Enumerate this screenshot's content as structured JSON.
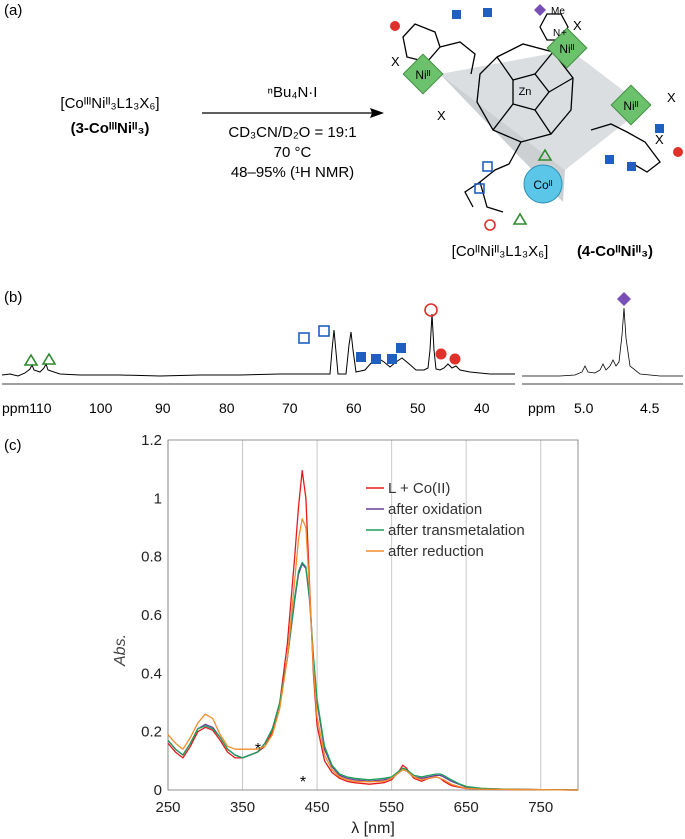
{
  "panels": {
    "a": "(a)",
    "b": "(b)",
    "c": "(c)"
  },
  "scheme": {
    "reactant_formula": "[CoᴵᴵᴵNiᴵᴵ₃L1₃X₆]",
    "reactant_label": "(3-CoᴵᴵᴵNiᴵᴵ₃)",
    "reagent": "ⁿBu₄N·I",
    "solvent": "CD₃CN/D₂O = 19:1",
    "temperature": "70 °C",
    "yield": "48–95% (¹H NMR)",
    "product_formula": "[CoᴵᴵNiᴵᴵ₃L1₃X₆]",
    "product_label": "(4-CoᴵᴵNiᴵᴵ₃)",
    "structure": {
      "ni_label": "Niᴵᴵ",
      "co_label": "Coᴵᴵ",
      "zn_label": "Zn",
      "x_label": "X",
      "me_label": "Me",
      "n_label": "N",
      "plus": "+"
    }
  },
  "nmr": {
    "main_ticks": [
      "ppm110",
      "100",
      "90",
      "80",
      "70",
      "60",
      "50",
      "40"
    ],
    "inset_ticks": [
      "ppm",
      "5.0",
      "4.5"
    ]
  },
  "chart_data": {
    "type": "line",
    "title": "",
    "xlabel": "λ [nm]",
    "ylabel": "Abs.",
    "xlim": [
      250,
      800
    ],
    "ylim": [
      0,
      1.2
    ],
    "x_ticks": [
      250,
      350,
      450,
      550,
      650,
      750
    ],
    "y_ticks": [
      0,
      0.2,
      0.4,
      0.6,
      0.8,
      1,
      1.2
    ],
    "y_tick_labels": [
      "0",
      "0.2",
      "0.4",
      "0.6",
      "0.8",
      "1",
      "1.2"
    ],
    "grid": "vertical",
    "legend_position": "top-right",
    "annotations": [
      "*",
      "*"
    ],
    "x": [
      250,
      260,
      270,
      280,
      290,
      300,
      310,
      320,
      330,
      340,
      350,
      360,
      370,
      380,
      390,
      400,
      410,
      420,
      425,
      430,
      435,
      440,
      445,
      450,
      460,
      470,
      480,
      490,
      500,
      520,
      540,
      550,
      560,
      565,
      570,
      575,
      580,
      590,
      600,
      610,
      615,
      620,
      630,
      640,
      650,
      670,
      700,
      750,
      800
    ],
    "series": [
      {
        "name": "L + Co(II)",
        "color": "#e41a1c",
        "values": [
          0.16,
          0.13,
          0.11,
          0.15,
          0.2,
          0.215,
          0.205,
          0.17,
          0.13,
          0.11,
          0.11,
          0.12,
          0.13,
          0.15,
          0.2,
          0.3,
          0.5,
          0.8,
          0.97,
          1.095,
          1.0,
          0.7,
          0.4,
          0.22,
          0.1,
          0.06,
          0.04,
          0.03,
          0.025,
          0.02,
          0.025,
          0.035,
          0.065,
          0.085,
          0.075,
          0.055,
          0.04,
          0.03,
          0.04,
          0.045,
          0.04,
          0.03,
          0.015,
          0.01,
          0.005,
          0.003,
          0.002,
          0.001,
          0.0
        ]
      },
      {
        "name": "after oxidation",
        "color": "#6a3d9a",
        "values": [
          0.17,
          0.14,
          0.12,
          0.16,
          0.21,
          0.225,
          0.215,
          0.18,
          0.14,
          0.12,
          0.11,
          0.12,
          0.13,
          0.16,
          0.21,
          0.3,
          0.45,
          0.65,
          0.74,
          0.775,
          0.76,
          0.65,
          0.45,
          0.3,
          0.14,
          0.08,
          0.05,
          0.04,
          0.035,
          0.03,
          0.035,
          0.04,
          0.06,
          0.07,
          0.065,
          0.055,
          0.045,
          0.04,
          0.045,
          0.05,
          0.05,
          0.045,
          0.03,
          0.02,
          0.01,
          0.005,
          0.003,
          0.001,
          0.0
        ]
      },
      {
        "name": "after transmetalation",
        "color": "#1b9e5a",
        "values": [
          0.17,
          0.14,
          0.12,
          0.16,
          0.21,
          0.22,
          0.21,
          0.18,
          0.14,
          0.12,
          0.11,
          0.12,
          0.13,
          0.16,
          0.21,
          0.3,
          0.45,
          0.66,
          0.75,
          0.78,
          0.765,
          0.66,
          0.46,
          0.31,
          0.15,
          0.085,
          0.055,
          0.045,
          0.04,
          0.035,
          0.04,
          0.045,
          0.065,
          0.075,
          0.07,
          0.06,
          0.05,
          0.045,
          0.05,
          0.055,
          0.055,
          0.05,
          0.035,
          0.022,
          0.012,
          0.006,
          0.003,
          0.001,
          0.0
        ]
      },
      {
        "name": "after reduction",
        "color": "#f28e2b",
        "values": [
          0.19,
          0.16,
          0.14,
          0.18,
          0.23,
          0.26,
          0.245,
          0.19,
          0.15,
          0.14,
          0.14,
          0.14,
          0.14,
          0.15,
          0.19,
          0.28,
          0.45,
          0.72,
          0.86,
          0.93,
          0.9,
          0.68,
          0.42,
          0.25,
          0.12,
          0.07,
          0.045,
          0.035,
          0.03,
          0.028,
          0.03,
          0.04,
          0.06,
          0.07,
          0.065,
          0.055,
          0.045,
          0.035,
          0.04,
          0.045,
          0.04,
          0.035,
          0.02,
          0.012,
          0.006,
          0.003,
          0.002,
          0.001,
          0.0
        ]
      }
    ]
  }
}
